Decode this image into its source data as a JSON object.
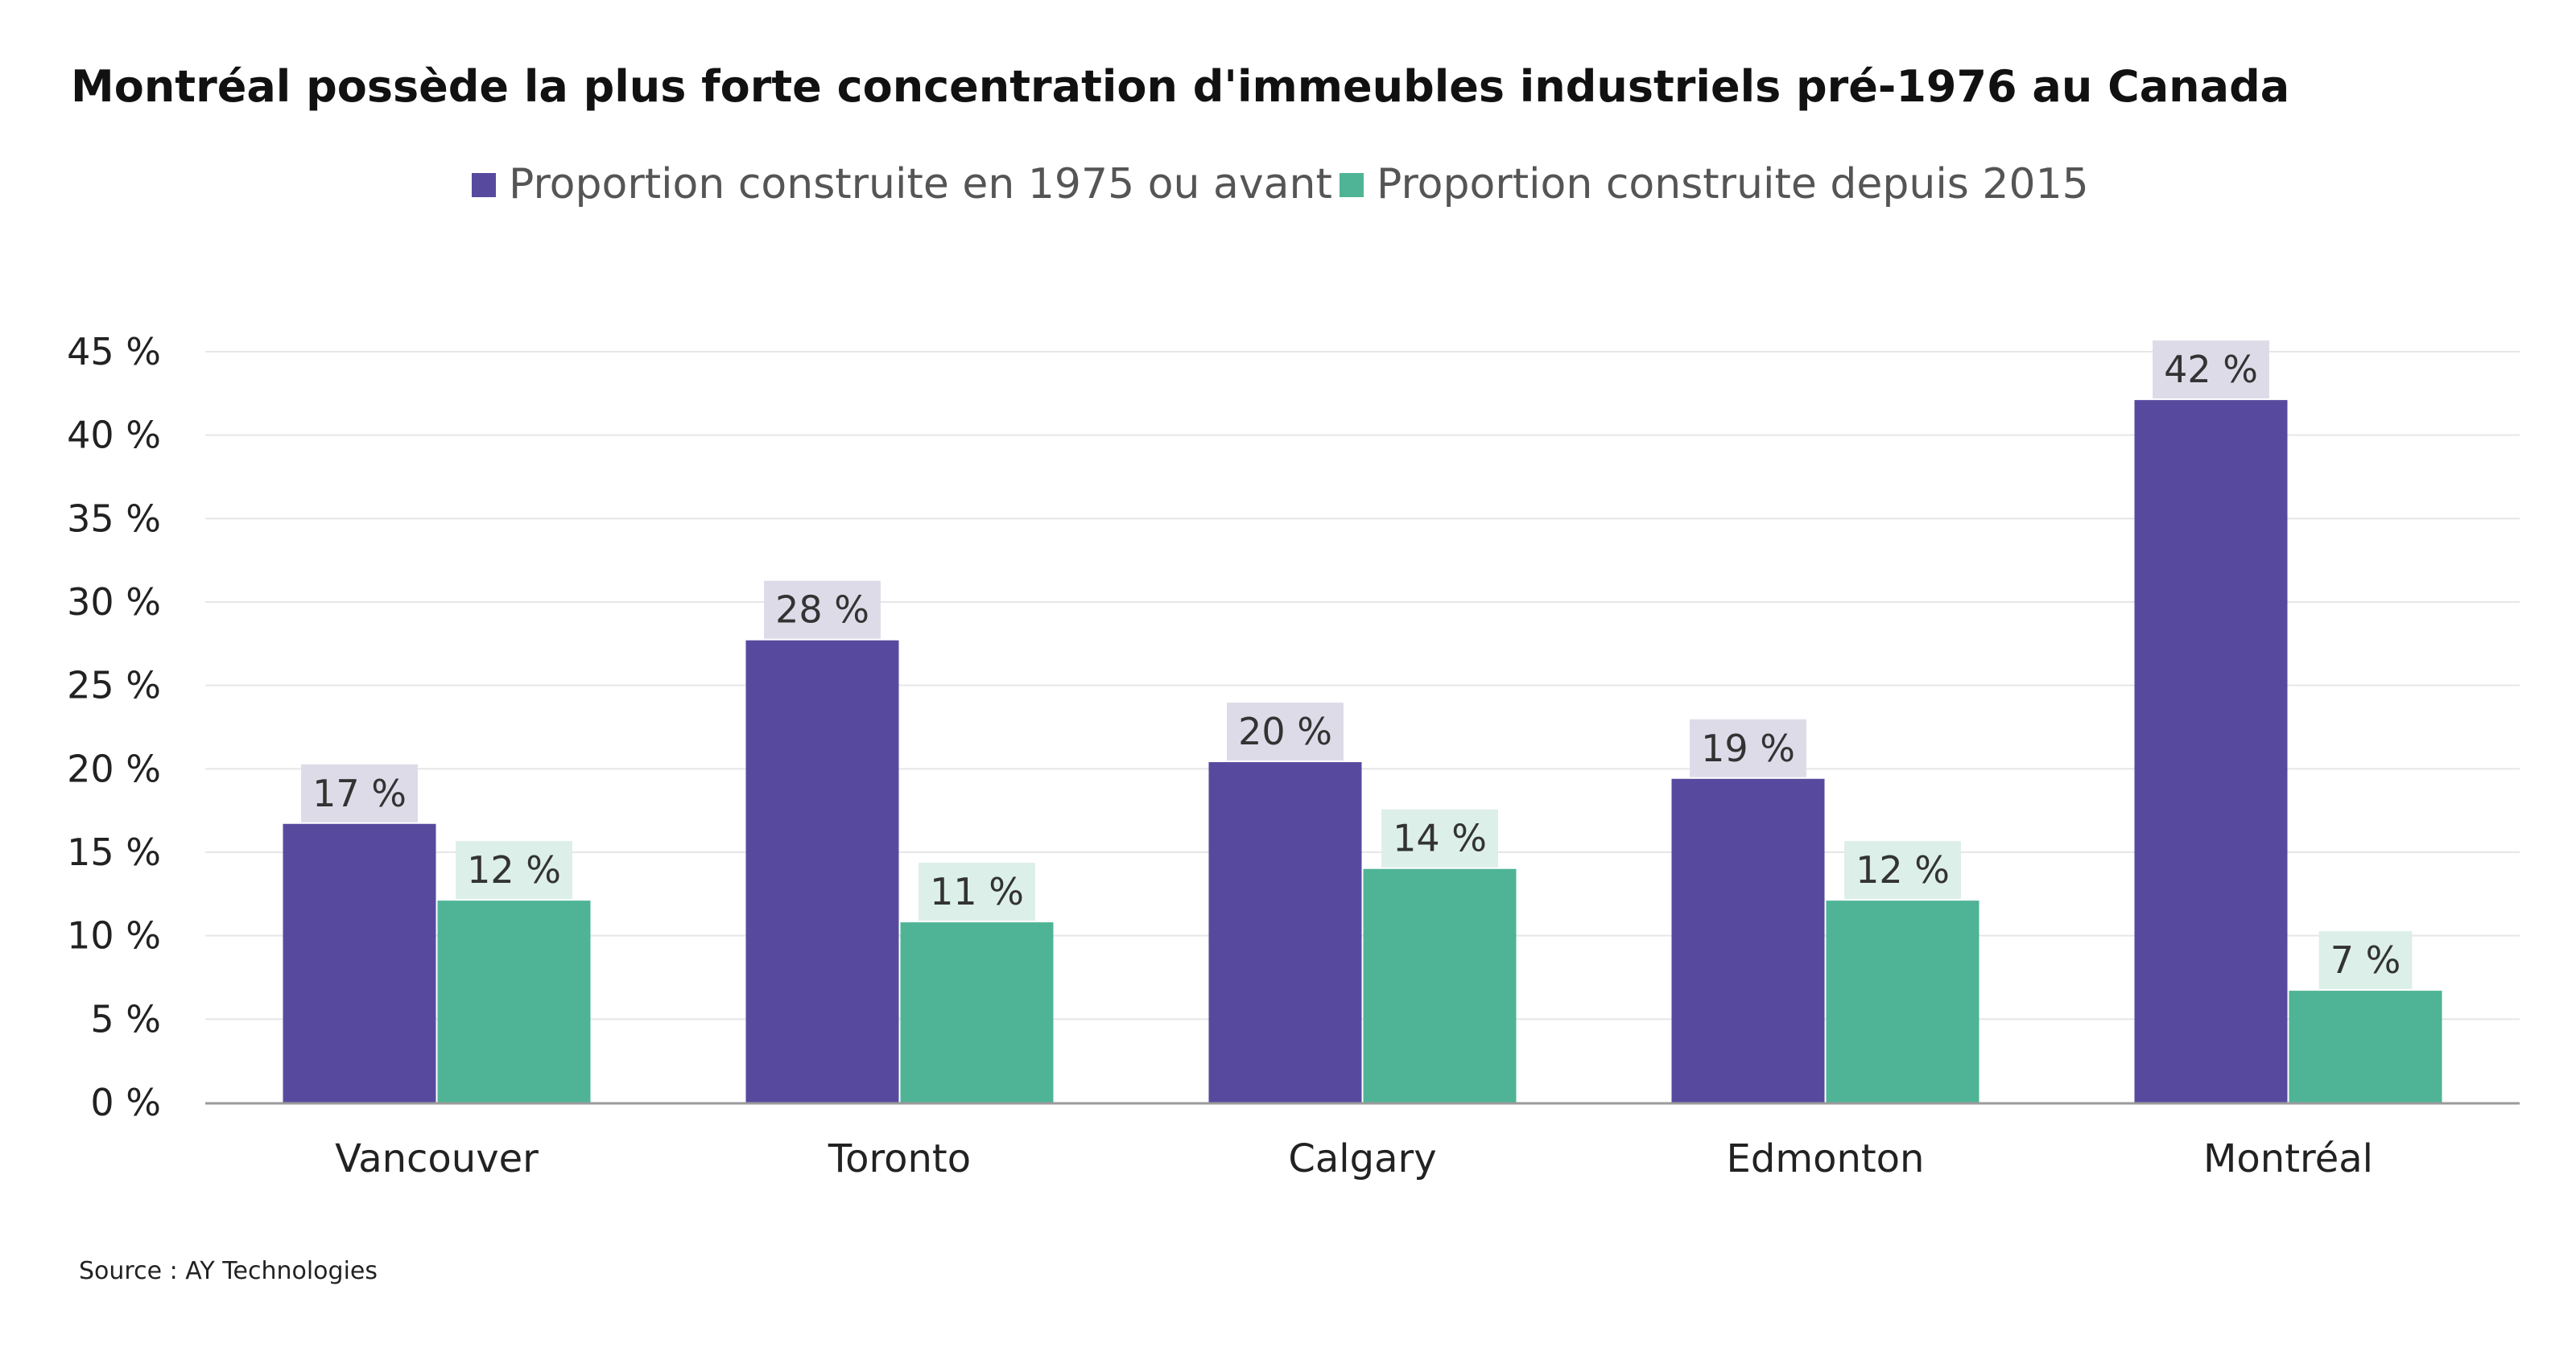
{
  "chart_data": {
    "type": "bar",
    "title": "Montréal possède la plus forte concentration d'immeubles industriels pré-1976 au Canada",
    "categories": [
      "Vancouver",
      "Toronto",
      "Calgary",
      "Edmonton",
      "Montréal"
    ],
    "series": [
      {
        "name": "Proportion construite en 1975 ou avant",
        "color": "#574a9e",
        "label_bg": "#dedbe9",
        "values": [
          16.7,
          27.7,
          20.4,
          19.4,
          42.1
        ],
        "labels": [
          "17 %",
          "28 %",
          "20 %",
          "19 %",
          "42 %"
        ]
      },
      {
        "name": "Proportion construite depuis 2015",
        "color": "#4fb496",
        "label_bg": "#dcefe8",
        "values": [
          12.1,
          10.8,
          14.0,
          12.1,
          6.7
        ],
        "labels": [
          "12 %",
          "11 %",
          "14 %",
          "12 %",
          "7 %"
        ]
      }
    ],
    "ylim": [
      0,
      45
    ],
    "yticks": [
      0,
      5,
      10,
      15,
      20,
      25,
      30,
      35,
      40,
      45
    ],
    "ytick_labels": [
      "0 %",
      "5 %",
      "10 %",
      "15 %",
      "20 %",
      "25 %",
      "30 %",
      "35 %",
      "40 %",
      "45 %"
    ],
    "xlabel": "",
    "ylabel": "",
    "grid": true,
    "legend_position": "top-center"
  },
  "source": "Source : AY Technologies",
  "colors": {
    "grid": "#e6e6e6",
    "axis": "#9a9a9a"
  }
}
